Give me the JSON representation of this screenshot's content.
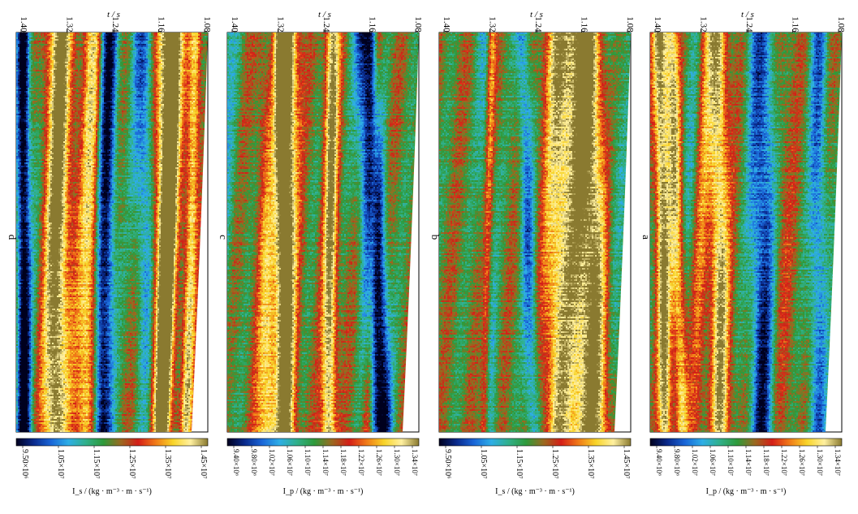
{
  "colors": {
    "scale": [
      "#00001e",
      "#0a2a8c",
      "#1a66d8",
      "#2eaee6",
      "#30b08a",
      "#2e9a3a",
      "#9a6a20",
      "#d41e18",
      "#f07a18",
      "#f8d428",
      "#fff0a0",
      "#8a7a30"
    ],
    "frame": "#000000"
  },
  "chart_data": [
    {
      "type": "heatmap",
      "panel_label": "d",
      "time_label": "t / s",
      "time_ticks": [
        "1.40",
        "1.32",
        "1.24",
        "1.16",
        "1.08"
      ],
      "time_range": [
        1.4,
        1.08
      ],
      "colorbar_label": "I_s / (kg · m⁻³ · m · s⁻¹)",
      "colorbar_ticks": [
        "9.50×10⁶",
        "1.05×10⁷",
        "1.15×10⁷",
        "1.25×10⁷",
        "1.35×10⁷",
        "1.45×10⁷"
      ],
      "value_range": [
        9000000.0,
        14800000.0
      ],
      "seed": 4
    },
    {
      "type": "heatmap",
      "panel_label": "c",
      "time_label": "t / s",
      "time_ticks": [
        "1.40",
        "1.32",
        "1.24",
        "1.16",
        "1.08"
      ],
      "time_range": [
        1.4,
        1.08
      ],
      "colorbar_label": "I_p / (kg · m⁻³ · m · s⁻¹)",
      "colorbar_ticks": [
        "9.40×10⁶",
        "9.80×10⁶",
        "1.02×10⁷",
        "1.06×10⁷",
        "1.10×10⁷",
        "1.14×10⁷",
        "1.18×10⁷",
        "1.22×10⁷",
        "1.26×10⁷",
        "1.30×10⁷",
        "1.34×10⁷"
      ],
      "value_range": [
        9200000.0,
        13600000.0
      ],
      "seed": 3
    },
    {
      "type": "heatmap",
      "panel_label": "b",
      "time_label": "t / s",
      "time_ticks": [
        "1.40",
        "1.32",
        "1.24",
        "1.16",
        "1.08"
      ],
      "time_range": [
        1.4,
        1.08
      ],
      "colorbar_label": "I_s / (kg · m⁻³ · m · s⁻¹)",
      "colorbar_ticks": [
        "9.50×10⁶",
        "1.05×10⁷",
        "1.15×10⁷",
        "1.25×10⁷",
        "1.35×10⁷",
        "1.45×10⁷"
      ],
      "value_range": [
        9000000.0,
        14800000.0
      ],
      "seed": 2
    },
    {
      "type": "heatmap",
      "panel_label": "a",
      "time_label": "t / s",
      "time_ticks": [
        "1.40",
        "1.32",
        "1.24",
        "1.16",
        "1.08"
      ],
      "time_range": [
        1.4,
        1.08
      ],
      "colorbar_label": "I_p / (kg · m⁻³ · m · s⁻¹)",
      "colorbar_ticks": [
        "9.40×10⁶",
        "9.80×10⁶",
        "1.02×10⁷",
        "1.06×10⁷",
        "1.10×10⁷",
        "1.14×10⁷",
        "1.18×10⁷",
        "1.22×10⁷",
        "1.26×10⁷",
        "1.30×10⁷",
        "1.34×10⁷"
      ],
      "value_range": [
        9200000.0,
        13600000.0
      ],
      "seed": 1
    }
  ]
}
